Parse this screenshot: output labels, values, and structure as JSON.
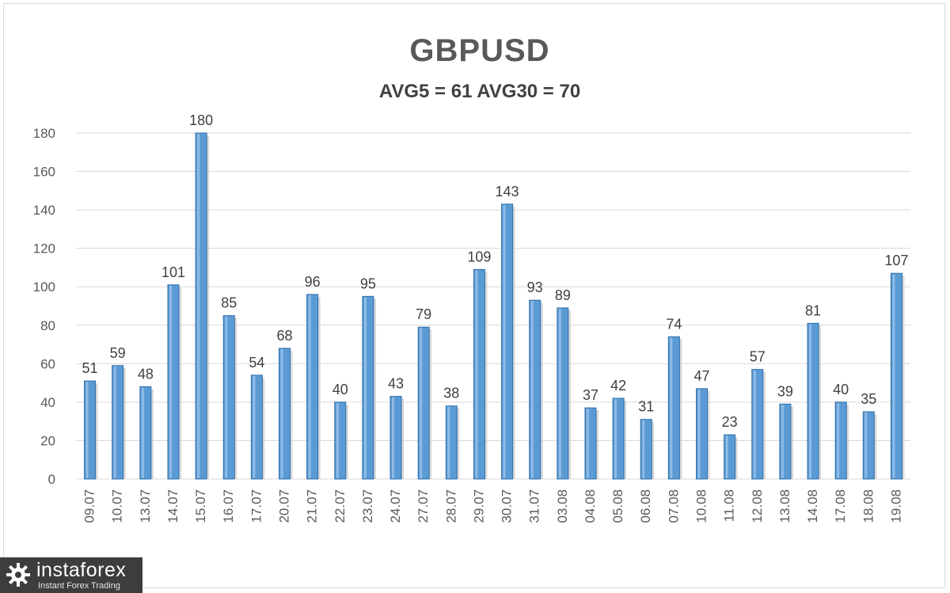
{
  "chart_data": {
    "type": "bar",
    "title": "GBPUSD",
    "subtitle": "AVG5 = 61 AVG30 = 70",
    "categories": [
      "09.07",
      "10.07",
      "13.07",
      "14.07",
      "15.07",
      "16.07",
      "17.07",
      "20.07",
      "21.07",
      "22.07",
      "23.07",
      "24.07",
      "27.07",
      "28.07",
      "29.07",
      "30.07",
      "31.07",
      "03.08",
      "04.08",
      "05.08",
      "06.08",
      "07.08",
      "10.08",
      "11.08",
      "12.08",
      "13.08",
      "14.08",
      "17.08",
      "18.08",
      "19.08"
    ],
    "values": [
      51,
      59,
      48,
      101,
      180,
      85,
      54,
      68,
      96,
      40,
      95,
      43,
      79,
      38,
      109,
      143,
      93,
      89,
      37,
      42,
      31,
      74,
      47,
      23,
      57,
      39,
      81,
      40,
      35,
      107
    ],
    "ylim": [
      0,
      180
    ],
    "yticks": [
      0,
      20,
      40,
      60,
      80,
      100,
      120,
      140,
      160,
      180
    ],
    "grid": true,
    "bar_color": "#5b9bd5",
    "bar_edge_color": "#2f6ea8"
  },
  "logo": {
    "name": "instaforex",
    "tagline": "Instant Forex Trading"
  }
}
